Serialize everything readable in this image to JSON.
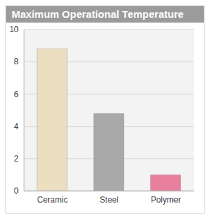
{
  "chart_data": {
    "type": "bar",
    "title": "Maximum Operational Temperature",
    "categories": [
      "Ceramic",
      "Steel",
      "Polymer"
    ],
    "values": [
      8.8,
      4.8,
      1
    ],
    "colors": [
      "#ebdfc0",
      "#a9a9a9",
      "#e8809d"
    ],
    "ylim": [
      0,
      10
    ],
    "yticks": [
      0,
      2,
      4,
      6,
      8,
      10
    ],
    "grid": true
  }
}
